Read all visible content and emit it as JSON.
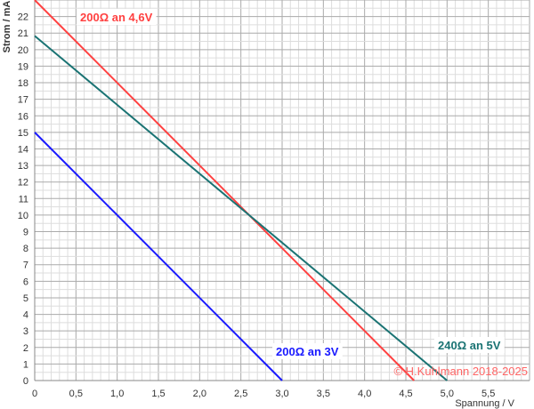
{
  "chart_data": {
    "type": "line",
    "xlabel": "Spannung / V",
    "ylabel": "Strom / mA",
    "xlim": [
      0,
      6
    ],
    "ylim": [
      0,
      23
    ],
    "grid": true,
    "x_ticks": [
      "0",
      "0,5",
      "1,0",
      "1,5",
      "2,0",
      "2,5",
      "3,0",
      "3,5",
      "4,0",
      "4,5",
      "5,0",
      "5,5"
    ],
    "y_ticks": [
      "0",
      "1",
      "2",
      "3",
      "4",
      "5",
      "6",
      "7",
      "8",
      "9",
      "10",
      "11",
      "12",
      "13",
      "14",
      "15",
      "16",
      "17",
      "18",
      "19",
      "20",
      "21",
      "22"
    ],
    "series": [
      {
        "name": "200Ω an 4,6V",
        "color": "#ff4040",
        "x": [
          0,
          4.6
        ],
        "y": [
          23,
          0
        ]
      },
      {
        "name": "240Ω an 5V",
        "color": "#1a7373",
        "x": [
          0,
          5
        ],
        "y": [
          20.83,
          0
        ]
      },
      {
        "name": "200Ω an 3V",
        "color": "#1a1aff",
        "x": [
          0,
          3
        ],
        "y": [
          15,
          0
        ]
      }
    ]
  },
  "copyright": "© H.Kuhlmann 2018-2025"
}
